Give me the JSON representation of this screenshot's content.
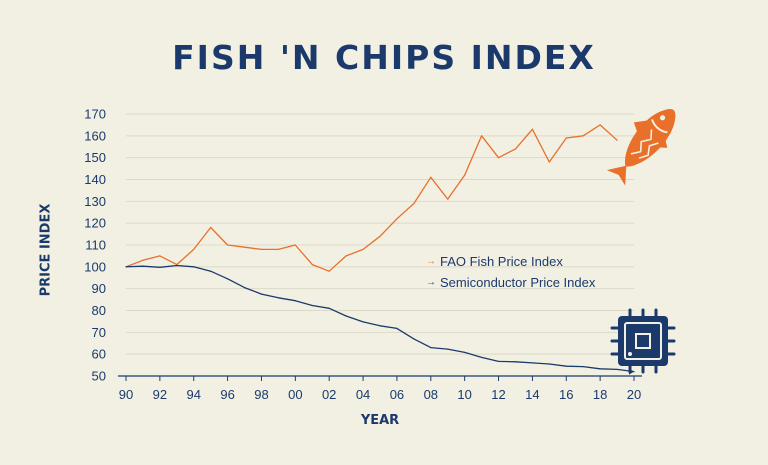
{
  "colors": {
    "background": "#f2f0e3",
    "navy": "#1b3a6b",
    "orange": "#e8702a",
    "grid": "#ddd9c9"
  },
  "icons": [
    "fish-icon",
    "microchip-icon"
  ],
  "chart_data": {
    "type": "line",
    "title": "FISH 'N CHIPS INDEX",
    "xlabel": "YEAR",
    "ylabel": "PRICE INDEX",
    "xlim": [
      1990,
      2020
    ],
    "ylim": [
      50,
      170
    ],
    "yticks": [
      "50",
      "60",
      "70",
      "80",
      "90",
      "100",
      "110",
      "120",
      "130",
      "140",
      "150",
      "160",
      "170"
    ],
    "xticks": [
      "90",
      "92",
      "94",
      "96",
      "98",
      "00",
      "02",
      "04",
      "06",
      "08",
      "10",
      "12",
      "14",
      "16",
      "18",
      "20"
    ],
    "grid": true,
    "legend_position": "center-right",
    "x": [
      1990,
      1991,
      1992,
      1993,
      1994,
      1995,
      1996,
      1997,
      1998,
      1999,
      2000,
      2001,
      2002,
      2003,
      2004,
      2005,
      2006,
      2007,
      2008,
      2009,
      2010,
      2011,
      2012,
      2013,
      2014,
      2015,
      2016,
      2017,
      2018,
      2019,
      2020
    ],
    "series": [
      {
        "name": "FAO Fish Price Index",
        "color": "#e8702a",
        "values": [
          100,
          103,
          105,
          101,
          108,
          118,
          110,
          109,
          108,
          108,
          110,
          101,
          98,
          105,
          108,
          114,
          122,
          129,
          141,
          131,
          142,
          160,
          150,
          154,
          163,
          148,
          159,
          160,
          165,
          158,
          null
        ]
      },
      {
        "name": "Semiconductor Price Index",
        "color": "#1b3a6b",
        "values": [
          100,
          100.3,
          99.8,
          100.6,
          100,
          98,
          94.5,
          90.5,
          87.5,
          85.8,
          84.5,
          82.3,
          81,
          77.5,
          74.8,
          73,
          71.8,
          67,
          63,
          62.3,
          60.8,
          58.5,
          56.7,
          56.5,
          56,
          55.5,
          54.5,
          54.3,
          53.3,
          53,
          52
        ]
      }
    ]
  }
}
